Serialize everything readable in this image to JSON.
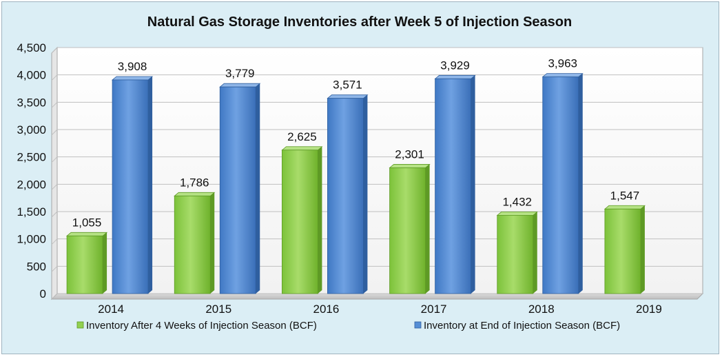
{
  "chart_data": {
    "type": "bar",
    "title": "Natural Gas Storage Inventories after Week 5 of Injection Season",
    "xlabel": "",
    "ylabel": "",
    "categories": [
      "2014",
      "2015",
      "2016",
      "2017",
      "2018",
      "2019"
    ],
    "ylim": [
      0,
      4500
    ],
    "yticks": [
      0,
      500,
      1000,
      1500,
      2000,
      2500,
      3000,
      3500,
      4000,
      4500
    ],
    "ytick_labels": [
      "0",
      "500",
      "1,000",
      "1,500",
      "2,000",
      "2,500",
      "3,000",
      "3,500",
      "4,000",
      "4,500"
    ],
    "grid": true,
    "legend_position": "bottom",
    "series": [
      {
        "name": "Inventory After 4 Weeks of Injection Season (BCF)",
        "color": "#92d050",
        "values": [
          1055,
          1786,
          2625,
          2301,
          1432,
          1547
        ],
        "labels": [
          "1,055",
          "1,786",
          "2,625",
          "2,301",
          "1,432",
          "1,547"
        ]
      },
      {
        "name": "Inventory at End of Injection Season (BCF)",
        "color": "#558ed5",
        "values": [
          3908,
          3779,
          3571,
          3929,
          3963,
          null
        ],
        "labels": [
          "3,908",
          "3,779",
          "3,571",
          "3,929",
          "3,963",
          ""
        ]
      }
    ]
  }
}
